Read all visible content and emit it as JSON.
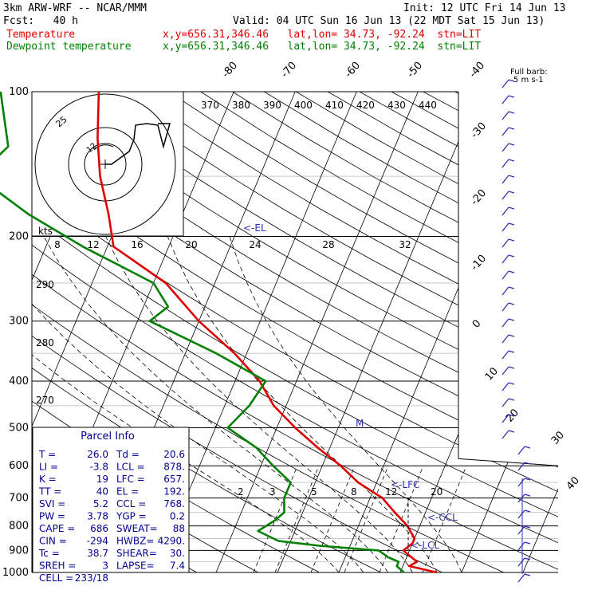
{
  "header": {
    "model": "3km ARW-WRF -- NCAR/MMM",
    "init": "Init: 12 UTC Fri 14 Jun 13",
    "fcst": "Fcst:   40 h",
    "valid": "Valid: 04 UTC Sun 16 Jun 13 (22 MDT Sat 15 Jun 13)",
    "temp_label": "Temperature",
    "dew_label": "Dewpoint temperature",
    "temp_loc": "x,y=656.31,346.46   lat,lon= 34.73, -92.24  stn=LIT",
    "dew_loc": "x,y=656.31,346.46   lat,lon= 34.73, -92.24  stn=LIT"
  },
  "colors": {
    "temperature": "#e00000",
    "dewpoint": "#008000",
    "barbs": "#3030b0",
    "parcel_box": "#000090"
  },
  "chart_data": {
    "type": "line",
    "pressure_levels": [
      100,
      200,
      300,
      400,
      500,
      600,
      700,
      800,
      900,
      1000
    ],
    "skew_temp_labels": [
      "-80",
      "-70",
      "-60",
      "-50",
      "-40",
      "-30",
      "-20",
      "-10",
      "0",
      "10",
      "20",
      "30",
      "40"
    ],
    "theta_labels": [
      "370",
      "380",
      "390",
      "400",
      "410",
      "420",
      "430",
      "440"
    ],
    "theta_side_labels": [
      "290",
      "280",
      "270"
    ],
    "hodo_labels": [
      "8",
      "12",
      "16",
      "20",
      "24",
      "28",
      "32"
    ],
    "hodo_unit": "kts",
    "hodo_rings": [
      "25",
      "12"
    ],
    "mixing_labels": [
      "2",
      "3",
      "5",
      "8",
      "12",
      "20"
    ],
    "barb_title": "Full barb:",
    "barb_unit": "5 m s-1",
    "levels_marked": [
      {
        "name": "<-EL",
        "p": 192
      },
      {
        "name": "<-LFC",
        "p": 657
      },
      {
        "name": "<-CCL",
        "p": 768
      },
      {
        "name": "<-LCL",
        "p": 878
      },
      {
        "name": "M",
        "p": 490
      }
    ],
    "series": [
      {
        "name": "Temperature",
        "points": [
          [
            1000,
            26.0
          ],
          [
            970,
            21
          ],
          [
            950,
            22
          ],
          [
            900,
            19
          ],
          [
            870,
            20
          ],
          [
            850,
            20
          ],
          [
            800,
            18
          ],
          [
            750,
            15
          ],
          [
            700,
            12
          ],
          [
            650,
            7
          ],
          [
            600,
            3
          ],
          [
            550,
            -2
          ],
          [
            500,
            -7
          ],
          [
            450,
            -12
          ],
          [
            400,
            -16
          ],
          [
            350,
            -22
          ],
          [
            300,
            -30
          ],
          [
            250,
            -38
          ],
          [
            210,
            -49
          ],
          [
            180,
            -52
          ],
          [
            150,
            -56
          ],
          [
            125,
            -59
          ],
          [
            100,
            -62
          ]
        ]
      },
      {
        "name": "Dewpoint temperature",
        "points": [
          [
            1000,
            20.6
          ],
          [
            970,
            19
          ],
          [
            950,
            19
          ],
          [
            930,
            17
          ],
          [
            900,
            15
          ],
          [
            880,
            5
          ],
          [
            860,
            -2
          ],
          [
            820,
            -6
          ],
          [
            780,
            -4
          ],
          [
            750,
            -3
          ],
          [
            700,
            -4
          ],
          [
            650,
            -4
          ],
          [
            600,
            -8
          ],
          [
            550,
            -12
          ],
          [
            500,
            -18
          ],
          [
            450,
            -16
          ],
          [
            400,
            -15
          ],
          [
            350,
            -25
          ],
          [
            300,
            -38
          ],
          [
            280,
            -36
          ],
          [
            250,
            -40
          ],
          [
            210,
            -54
          ],
          [
            180,
            -65
          ],
          [
            150,
            -76
          ],
          [
            130,
            -73
          ],
          [
            100,
            -78
          ]
        ]
      }
    ]
  },
  "parcel": {
    "title": "Parcel Info",
    "rows": [
      {
        "l": "T =",
        "v": "26.0",
        "r": "Td =",
        "rv": "20.6"
      },
      {
        "l": "LI =",
        "v": "-3.8",
        "r": "LCL =",
        "rv": "878."
      },
      {
        "l": "K =",
        "v": "19",
        "r": "LFC =",
        "rv": "657."
      },
      {
        "l": "TT =",
        "v": "40",
        "r": "EL =",
        "rv": "192."
      },
      {
        "l": "SVI =",
        "v": "5.2",
        "r": "CCL =",
        "rv": "768."
      },
      {
        "l": "PW =",
        "v": "3.78",
        "r": "YGP =",
        "rv": "0.2"
      },
      {
        "l": "CAPE =",
        "v": "686",
        "r": "SWEAT=",
        "rv": "88"
      },
      {
        "l": "CIN =",
        "v": "-294",
        "r": "HWBZ=",
        "rv": "4290."
      },
      {
        "l": "Tc =",
        "v": "38.7",
        "r": "SHEAR=",
        "rv": "30."
      },
      {
        "l": "SREH =",
        "v": "3",
        "r": "LAPSE=",
        "rv": "7.4"
      },
      {
        "l": "CELL =",
        "v": "233/18",
        "r": "",
        "rv": ""
      }
    ]
  }
}
